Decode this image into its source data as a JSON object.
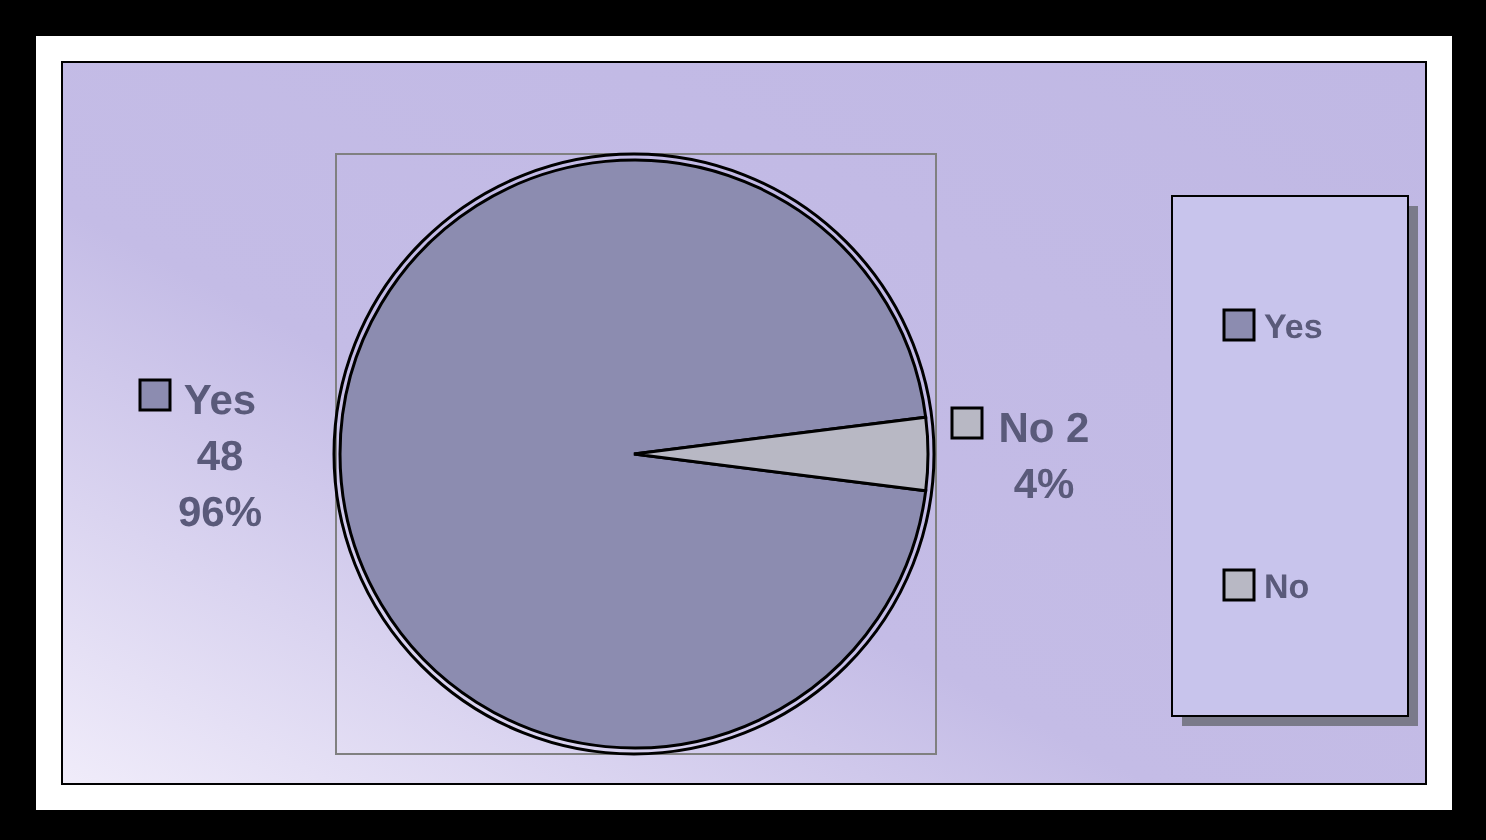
{
  "chart_data": {
    "type": "pie",
    "categories": [
      "Yes",
      "No"
    ],
    "values": [
      48,
      2
    ],
    "colors": [
      "#8c8cb0",
      "#b8b8c4"
    ],
    "value_labels": [
      "48 96%",
      "2 4%"
    ],
    "legend": "right"
  }
}
